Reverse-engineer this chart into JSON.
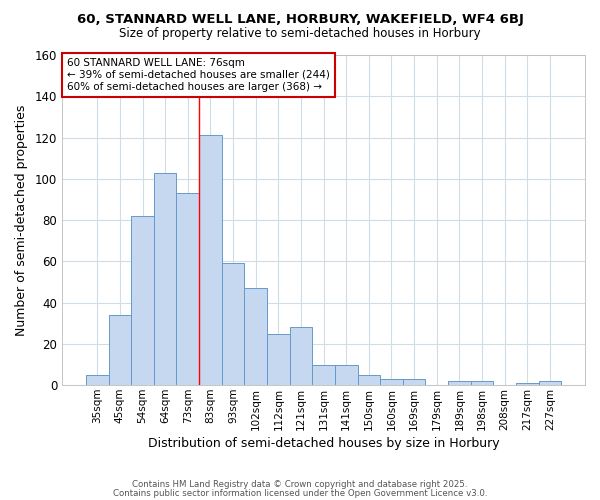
{
  "title1": "60, STANNARD WELL LANE, HORBURY, WAKEFIELD, WF4 6BJ",
  "title2": "Size of property relative to semi-detached houses in Horbury",
  "xlabel": "Distribution of semi-detached houses by size in Horbury",
  "ylabel": "Number of semi-detached properties",
  "categories": [
    "35sqm",
    "45sqm",
    "54sqm",
    "64sqm",
    "73sqm",
    "83sqm",
    "93sqm",
    "102sqm",
    "112sqm",
    "121sqm",
    "131sqm",
    "141sqm",
    "150sqm",
    "160sqm",
    "169sqm",
    "179sqm",
    "189sqm",
    "198sqm",
    "208sqm",
    "217sqm",
    "227sqm"
  ],
  "values": [
    5,
    34,
    82,
    103,
    93,
    121,
    59,
    47,
    25,
    28,
    10,
    10,
    5,
    3,
    3,
    0,
    2,
    2,
    0,
    1,
    2
  ],
  "bar_color": "#c5d8f0",
  "bar_edge_color": "#6699cc",
  "red_line_x": 4.5,
  "annotation_title": "60 STANNARD WELL LANE: 76sqm",
  "annotation_line1": "← 39% of semi-detached houses are smaller (244)",
  "annotation_line2": "60% of semi-detached houses are larger (368) →",
  "annotation_box_color": "#ffffff",
  "annotation_box_edge": "#cc0000",
  "ylim": [
    0,
    160
  ],
  "yticks": [
    0,
    20,
    40,
    60,
    80,
    100,
    120,
    140,
    160
  ],
  "footnote1": "Contains HM Land Registry data © Crown copyright and database right 2025.",
  "footnote2": "Contains public sector information licensed under the Open Government Licence v3.0.",
  "bg_color": "#ffffff",
  "grid_color": "#d0dce8",
  "title1_fontsize": 9.5,
  "title2_fontsize": 8.5
}
